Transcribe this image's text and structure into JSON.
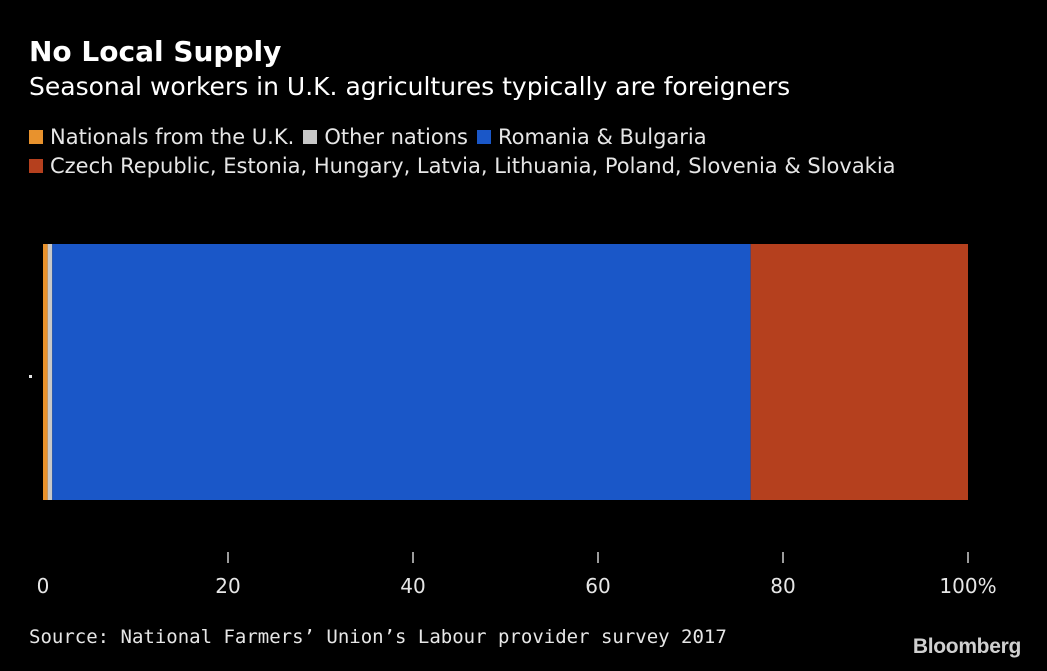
{
  "title": "No Local Supply",
  "subtitle": "Seasonal workers in U.K. agricultures typically are foreigners",
  "source": "Source: National Farmers’ Union’s Labour provider survey 2017",
  "logo": "Bloomberg",
  "chart_data": {
    "type": "bar",
    "orientation": "horizontal",
    "stacked": true,
    "categories": [
      ""
    ],
    "series": [
      {
        "name": "Nationals from the U.K.",
        "color": "#e8922d",
        "values": [
          0.5
        ]
      },
      {
        "name": "Other nations",
        "color": "#c8c8c8",
        "values": [
          0.5
        ]
      },
      {
        "name": "Romania & Bulgaria",
        "color": "#1a57c8",
        "values": [
          75.5
        ]
      },
      {
        "name": "Czech Republic, Estonia, Hungary, Latvia, Lithuania, Poland, Slovenia & Slovakia",
        "color": "#b5401e",
        "values": [
          23.5
        ]
      }
    ],
    "xlim": [
      0,
      100
    ],
    "xticks": [
      0,
      20,
      40,
      60,
      80,
      100
    ],
    "xtick_labels": [
      "0",
      "20",
      "40",
      "60",
      "80",
      "100%"
    ],
    "xlabel": "",
    "ylabel": "",
    "grid": false,
    "legend_position": "top"
  }
}
